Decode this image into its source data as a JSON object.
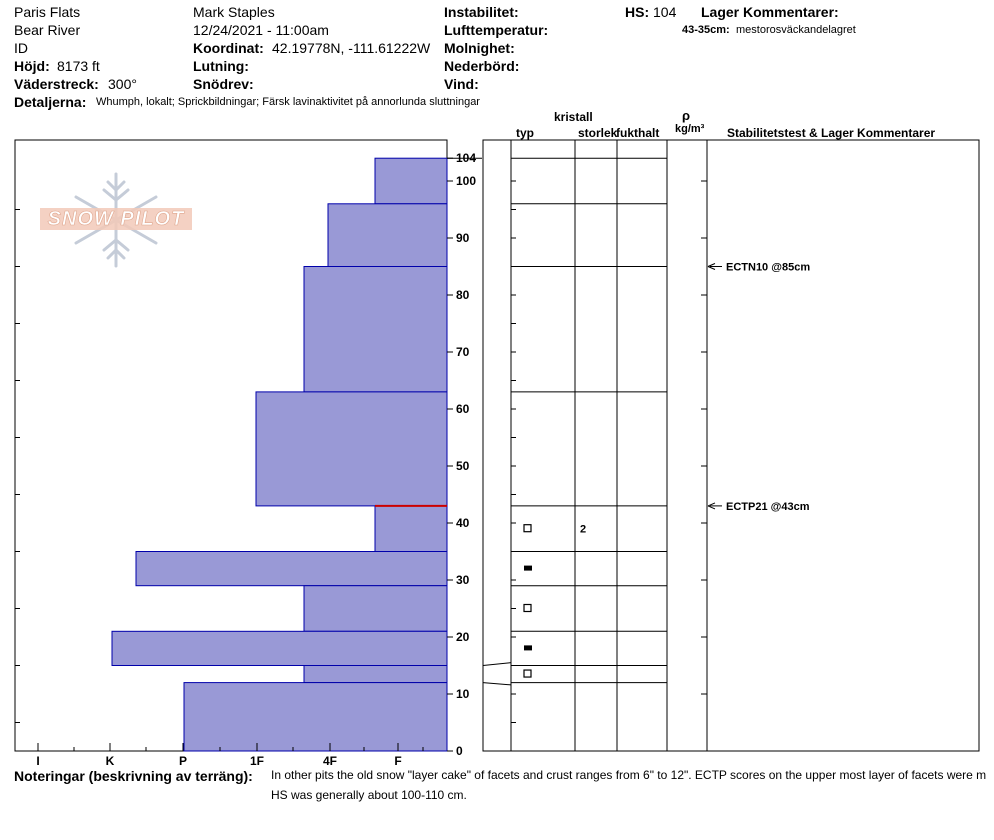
{
  "header": {
    "location": "Paris Flats",
    "region": "Bear River",
    "id_label": "ID",
    "elevation_label": "Höjd:",
    "elevation_value": "8173 ft",
    "aspect_label": "Väderstreck:",
    "aspect_value": "300°",
    "observer": "Mark Staples",
    "datetime": "12/24/2021 - 11:00am",
    "coord_label": "Koordinat:",
    "coord_value": "42.19778N, -111.61222W",
    "slope_label": "Lutning:",
    "drift_label": "Snödrev:",
    "instability_label": "Instabilitet:",
    "airtemp_label": "Lufttemperatur:",
    "clouds_label": "Molnighet:",
    "precip_label": "Nederbörd:",
    "wind_label": "Vind:",
    "hs_label": "HS:",
    "hs_value": "104",
    "layer_comments_label": "Lager Kommentarer:",
    "layer_comment_range": "43-35cm:",
    "layer_comment_text": "mestorosväckandelagret",
    "details_label": "Detaljerna:",
    "details_text": "Whumph, lokalt;  Sprickbildningar;  Färsk lavinaktivitet på annorlunda sluttningar"
  },
  "logo": {
    "text": "SNOW PILOT"
  },
  "columns": {
    "crystal": "kristall",
    "type": "typ",
    "size": "storlek",
    "moisture": "fukthalt",
    "rho": "ρ",
    "density_unit": "kg/m³",
    "stability": "Stabilitetstest & Lager Kommentarer"
  },
  "notes": {
    "label": "Noteringar (beskrivning av terräng):",
    "line1": "In other pits the old snow \"layer cake\" of facets and crust ranges from 6\" to 12\". ECTP scores on the upper most layer of facets were m",
    "line2": "HS was generally about 100-110 cm."
  },
  "colors": {
    "bar_fill": "#9999d6",
    "bar_stroke": "#0000aa",
    "weak_layer": "#cc0000"
  },
  "chart_data": {
    "type": "bar",
    "orientation": "horizontal",
    "title": "",
    "xlabel": "",
    "ylabel": "",
    "x_categories": [
      "I",
      "K",
      "P",
      "1F",
      "4F",
      "F"
    ],
    "ylim": [
      0,
      104
    ],
    "y_ticks": [
      0,
      10,
      20,
      30,
      40,
      50,
      60,
      70,
      80,
      90,
      100,
      104
    ],
    "layers": [
      {
        "top": 104,
        "bottom": 96,
        "hardness": "F"
      },
      {
        "top": 96,
        "bottom": 85,
        "hardness": "4F+"
      },
      {
        "top": 85,
        "bottom": 63,
        "hardness": "4F"
      },
      {
        "top": 63,
        "bottom": 43,
        "hardness": "1F"
      },
      {
        "top": 43,
        "bottom": 35,
        "hardness": "F"
      },
      {
        "top": 35,
        "bottom": 29,
        "hardness": "P+"
      },
      {
        "top": 29,
        "bottom": 21,
        "hardness": "4F"
      },
      {
        "top": 21,
        "bottom": 15,
        "hardness": "K-"
      },
      {
        "top": 15,
        "bottom": 12,
        "hardness": "4F"
      },
      {
        "top": 12,
        "bottom": 0,
        "hardness": "P"
      }
    ],
    "weak_layer_height": 43,
    "grain_rows": [
      {
        "y": 39,
        "symbol": "facet-open",
        "size": "2"
      },
      {
        "y": 32,
        "symbol": "crust-filled",
        "size": ""
      },
      {
        "y": 25,
        "symbol": "facet-open",
        "size": ""
      },
      {
        "y": 18,
        "symbol": "crust-filled",
        "size": ""
      },
      {
        "y": 13.5,
        "symbol": "facet-open",
        "size": ""
      }
    ],
    "stability_tests": [
      {
        "height": 85,
        "label": "ECTN10 @85cm"
      },
      {
        "height": 43,
        "label": "ECTP21 @43cm"
      }
    ]
  }
}
